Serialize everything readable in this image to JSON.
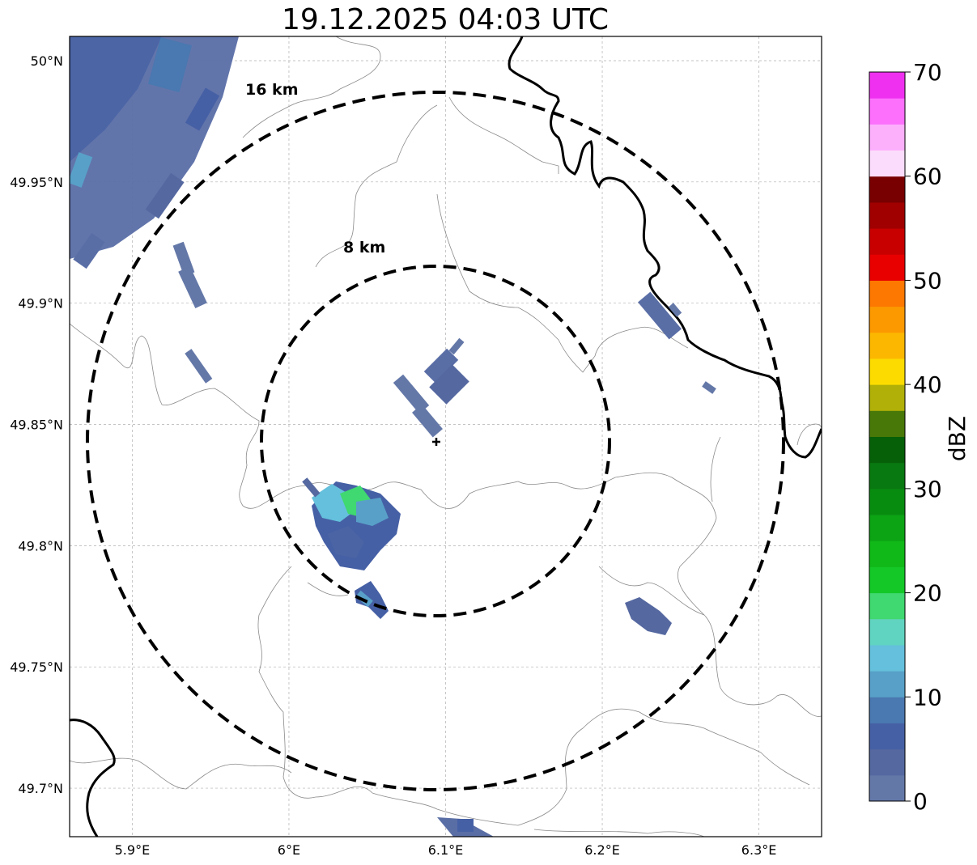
{
  "title": "19.12.2025 04:03 UTC",
  "map": {
    "lon_range": [
      5.86,
      6.34
    ],
    "lat_range": [
      49.68,
      50.01
    ],
    "lat_ticks": [
      {
        "value": 50.0,
        "label": "50°N"
      },
      {
        "value": 49.95,
        "label": "49.95°N"
      },
      {
        "value": 49.9,
        "label": "49.9°N"
      },
      {
        "value": 49.85,
        "label": "49.85°N"
      },
      {
        "value": 49.8,
        "label": "49.8°N"
      },
      {
        "value": 49.75,
        "label": "49.75°N"
      },
      {
        "value": 49.7,
        "label": "49.7°N"
      }
    ],
    "lon_ticks": [
      {
        "value": 5.9,
        "label": "5.9°E"
      },
      {
        "value": 6.0,
        "label": "6°E"
      },
      {
        "value": 6.1,
        "label": "6.1°E"
      },
      {
        "value": 6.2,
        "label": "6.2°E"
      },
      {
        "value": 6.3,
        "label": "6.3°E"
      }
    ],
    "gridlines": true,
    "radar_site": {
      "lon": 6.094,
      "lat": 49.845
    },
    "range_rings": [
      {
        "radius_km": 8,
        "label": "8 km"
      },
      {
        "radius_km": 16,
        "label": "16 km"
      }
    ]
  },
  "colorbar": {
    "label": "dBZ",
    "min": 0,
    "max": 70,
    "tick_labels": [
      "0",
      "10",
      "20",
      "30",
      "40",
      "50",
      "60",
      "70"
    ],
    "colors": [
      "#6478a8",
      "#5568a0",
      "#4660a5",
      "#4a78b0",
      "#58a0c8",
      "#64c0dc",
      "#60d4c0",
      "#40d870",
      "#14c828",
      "#10b818",
      "#0ca414",
      "#088c10",
      "#087810",
      "#066008",
      "#487808",
      "#b0b008",
      "#fcdc00",
      "#fcb800",
      "#fc9800",
      "#fc7800",
      "#e80000",
      "#c80000",
      "#a00000",
      "#780000",
      "#fcdcfc",
      "#fcb0fc",
      "#fc70fc",
      "#f030f0"
    ]
  }
}
